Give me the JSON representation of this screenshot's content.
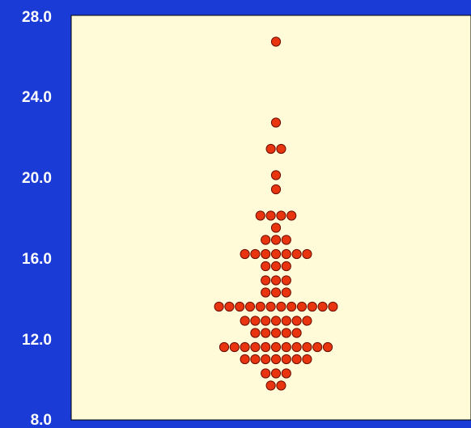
{
  "colors": {
    "background": "#1a3bd6",
    "plot_area": "#fffbd9",
    "plot_border": "#000000",
    "dot_fill": "#e8350f",
    "dot_stroke": "#6b0d00",
    "tick_label": "#ffffff"
  },
  "chart_data": {
    "type": "scatter",
    "subtype": "dot-plot",
    "title": "",
    "xlabel": "",
    "ylabel": "",
    "ylim": [
      8.0,
      28.0
    ],
    "yticks": [
      "8.0",
      "12.0",
      "16.0",
      "20.0",
      "24.0",
      "28.0"
    ],
    "ytick_values": [
      8,
      12,
      16,
      20,
      24,
      28
    ],
    "grid": false,
    "legend": "none",
    "rows": [
      {
        "y": 26.7,
        "count": 1
      },
      {
        "y": 22.7,
        "count": 1
      },
      {
        "y": 21.4,
        "count": 2
      },
      {
        "y": 20.1,
        "count": 1
      },
      {
        "y": 19.4,
        "count": 1
      },
      {
        "y": 18.1,
        "count": 4
      },
      {
        "y": 17.5,
        "count": 1
      },
      {
        "y": 16.9,
        "count": 3
      },
      {
        "y": 16.2,
        "count": 7
      },
      {
        "y": 15.6,
        "count": 3
      },
      {
        "y": 14.9,
        "count": 3
      },
      {
        "y": 14.3,
        "count": 3
      },
      {
        "y": 13.6,
        "count": 12
      },
      {
        "y": 12.9,
        "count": 7
      },
      {
        "y": 12.3,
        "count": 5
      },
      {
        "y": 11.6,
        "count": 11
      },
      {
        "y": 11.0,
        "count": 7
      },
      {
        "y": 10.3,
        "count": 3
      },
      {
        "y": 9.7,
        "count": 2
      }
    ]
  }
}
